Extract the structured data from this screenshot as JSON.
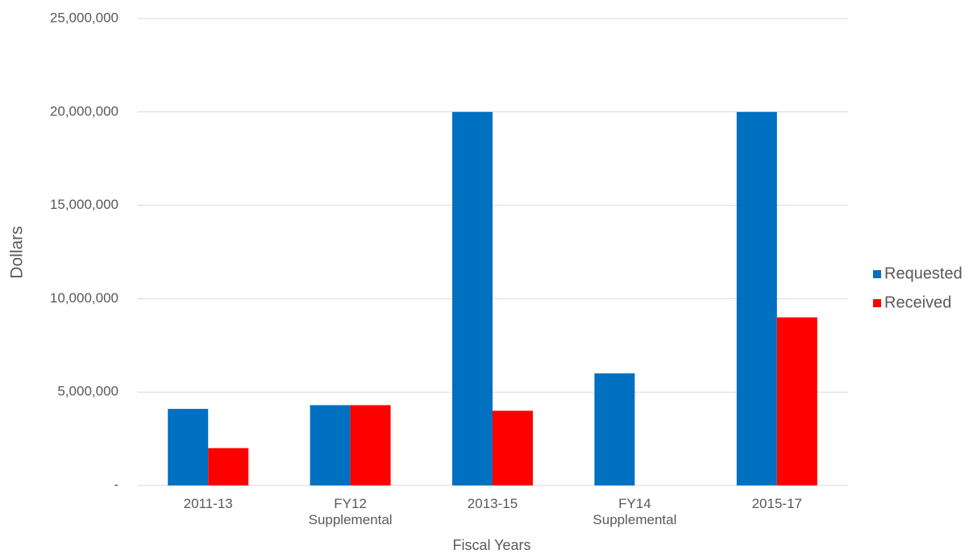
{
  "chart_data": {
    "type": "bar",
    "x_label": "Fiscal Years",
    "y_label": "Dollars",
    "categories": [
      "2011-13",
      "FY12 Supplemental",
      "2013-15",
      "FY14 Supplemental",
      "2015-17"
    ],
    "series": [
      {
        "name": "Requested",
        "color": "#0070c0",
        "values": [
          4100000,
          4300000,
          20000000,
          6000000,
          20000000
        ]
      },
      {
        "name": "Received",
        "color": "#ff0000",
        "values": [
          2000000,
          4300000,
          4000000,
          0,
          9000000
        ]
      }
    ],
    "ylim": [
      0,
      25000000
    ],
    "yticks": [
      {
        "value": 0,
        "label": "-"
      },
      {
        "value": 5000000,
        "label": "5,000,000"
      },
      {
        "value": 10000000,
        "label": "10,000,000"
      },
      {
        "value": 15000000,
        "label": "15,000,000"
      },
      {
        "value": 20000000,
        "label": "20,000,000"
      },
      {
        "value": 25000000,
        "label": "25,000,000"
      }
    ],
    "grid": true,
    "legend": "right"
  }
}
